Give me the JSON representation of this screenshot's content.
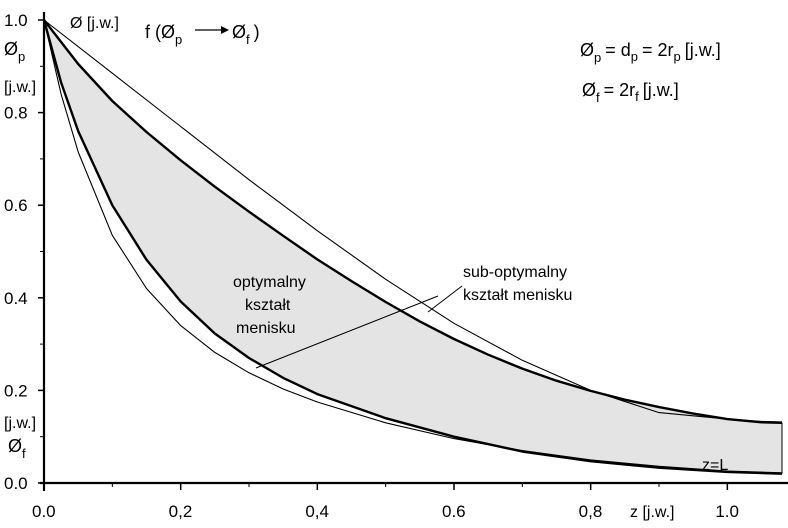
{
  "chart_data": {
    "type": "line",
    "title": "",
    "xlabel": "z [j.w.]",
    "xlim": [
      0.0,
      1.08
    ],
    "ylim": [
      0.0,
      1.0
    ],
    "x_ticks": [
      {
        "value": 0.0,
        "label": "0.0"
      },
      {
        "value": 0.2,
        "label": "0,2"
      },
      {
        "value": 0.4,
        "label": "0,4"
      },
      {
        "value": 0.6,
        "label": "0.6"
      },
      {
        "value": 0.8,
        "label": "0,8"
      },
      {
        "value": 1.0,
        "label": "1.0"
      }
    ],
    "y_ticks": [
      {
        "value": 1.0,
        "label": "1.0"
      },
      {
        "value": 0.8,
        "label": "0.8"
      },
      {
        "value": 0.6,
        "label": "0.6"
      },
      {
        "value": 0.4,
        "label": "0.4"
      },
      {
        "value": 0.2,
        "label": "0.2"
      },
      {
        "value": 0.0,
        "label": "0.0"
      }
    ],
    "series": [
      {
        "role": "upper-thick",
        "x": [
          0.0,
          0.05,
          0.1,
          0.15,
          0.2,
          0.25,
          0.3,
          0.35,
          0.4,
          0.45,
          0.5,
          0.55,
          0.6,
          0.65,
          0.7,
          0.75,
          0.8,
          0.85,
          0.9,
          0.95,
          1.0,
          1.05,
          1.08
        ],
        "y": [
          1.0,
          0.905,
          0.825,
          0.758,
          0.697,
          0.64,
          0.586,
          0.534,
          0.483,
          0.436,
          0.391,
          0.349,
          0.311,
          0.277,
          0.247,
          0.221,
          0.199,
          0.18,
          0.164,
          0.15,
          0.138,
          0.131,
          0.13
        ]
      },
      {
        "role": "upper-thin",
        "x": [
          0.0,
          0.1,
          0.2,
          0.3,
          0.4,
          0.5,
          0.6,
          0.7,
          0.8,
          0.9,
          1.0,
          1.05,
          1.08
        ],
        "y": [
          1.0,
          0.885,
          0.77,
          0.655,
          0.545,
          0.44,
          0.345,
          0.265,
          0.2,
          0.152,
          0.138,
          0.133,
          0.132
        ]
      },
      {
        "role": "lower-thick",
        "x": [
          0.0,
          0.025,
          0.05,
          0.1,
          0.15,
          0.2,
          0.25,
          0.3,
          0.35,
          0.4,
          0.5,
          0.6,
          0.7,
          0.8,
          0.9,
          1.0,
          1.08
        ],
        "y": [
          1.0,
          0.865,
          0.76,
          0.6,
          0.482,
          0.392,
          0.323,
          0.27,
          0.227,
          0.192,
          0.14,
          0.1,
          0.068,
          0.047,
          0.033,
          0.024,
          0.02
        ]
      },
      {
        "role": "lower-thin",
        "x": [
          0.0,
          0.025,
          0.05,
          0.1,
          0.15,
          0.2,
          0.25,
          0.3,
          0.35,
          0.4,
          0.5,
          0.6,
          0.7,
          0.8,
          0.9,
          1.0,
          1.08
        ],
        "y": [
          1.0,
          0.84,
          0.715,
          0.535,
          0.42,
          0.34,
          0.282,
          0.238,
          0.203,
          0.175,
          0.13,
          0.096,
          0.07,
          0.05,
          0.036,
          0.026,
          0.022
        ]
      }
    ],
    "shading": "between-thick-curves",
    "grid": false,
    "annotations": {
      "y_symbol_top": "Ø",
      "y_symbol_top_sub": "p",
      "y_unit_top": "[j.w.]",
      "y_symbol_bottom": "Ø",
      "y_symbol_bottom_sub": "f",
      "y_unit_bottom": "[j.w.]",
      "top_label": "Ø [j.w.]",
      "func_prefix": "f (Ø",
      "func_sub_p": "p",
      "func_mid": "Ø",
      "func_sub_f": "f",
      "func_suffix": ")",
      "formula1_lhs": "Ø",
      "formula1_lhs_sub": "p",
      "formula1_mid": "= d",
      "formula1_mid_sub": "p",
      "formula1_rhs": "= 2r",
      "formula1_rhs_sub": "p",
      "formula1_unit": "[j.w.]",
      "formula2_lhs": "Ø",
      "formula2_lhs_sub": "f",
      "formula2_rhs": "= 2r",
      "formula2_rhs_sub": "f",
      "formula2_unit": "[j.w.]",
      "optimal_line1": "optymalny",
      "optimal_line2": "kształt",
      "optimal_line3": "menisku",
      "suboptimal_line1": "sub-optymalny",
      "suboptimal_line2": "kształt menisku",
      "end_label": "z=L"
    },
    "colors": {
      "fill": "#e4e4e4",
      "line": "#000000",
      "background": "#ffffff"
    }
  }
}
